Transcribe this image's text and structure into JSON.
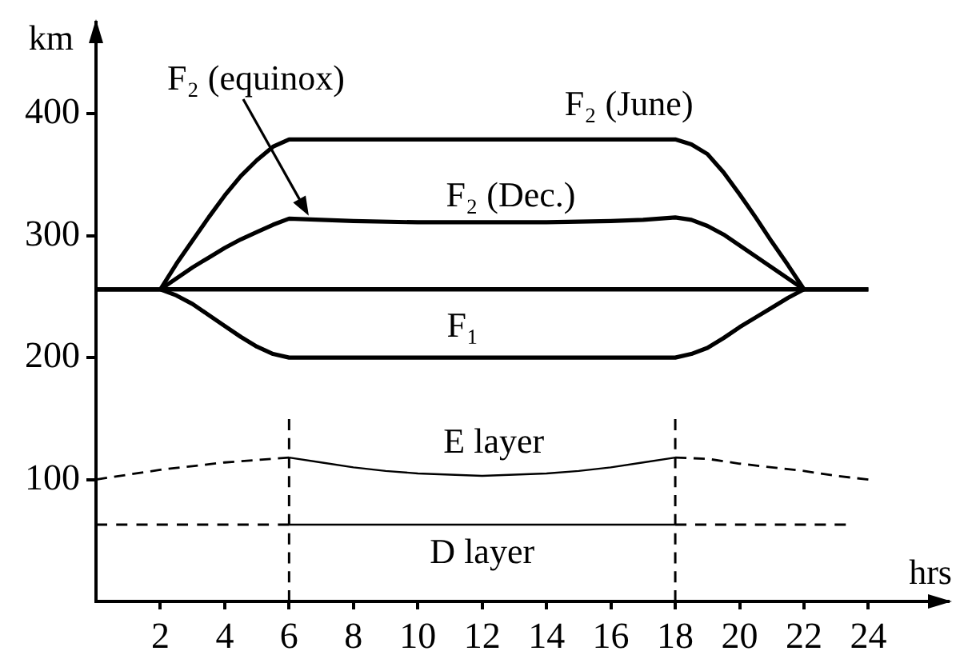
{
  "chart_data": {
    "type": "line",
    "xlabel": "hrs",
    "ylabel": "km",
    "xlim": [
      0,
      26.5
    ],
    "ylim": [
      0,
      475
    ],
    "xticks": [
      2,
      4,
      6,
      8,
      10,
      12,
      14,
      16,
      18,
      20,
      22,
      24
    ],
    "yticks": [
      100,
      200,
      300,
      400
    ],
    "grid": false,
    "legend": false,
    "marker": "none",
    "line_style": "solid",
    "annotations": [
      "F₂ (equinox)"
    ],
    "ref_lines": [
      {
        "axis": "x",
        "value": 6,
        "color": "#000000",
        "line_style": "dashed"
      },
      {
        "axis": "x",
        "value": 18,
        "color": "#000000",
        "line_style": "dashed"
      }
    ],
    "series": [
      {
        "color": "#000000",
        "x": [
          2,
          22
        ],
        "values": [
          256,
          256
        ]
      },
      {
        "name": "F₂ (June)",
        "color": "#000000",
        "x": [
          0,
          2,
          2.5,
          3,
          3.5,
          4,
          4.5,
          5,
          5.5,
          6,
          18,
          18.5,
          19,
          19.5,
          20,
          20.5,
          21,
          21.5,
          22,
          24
        ],
        "values": [
          256,
          256,
          277,
          296,
          315,
          333,
          349,
          362,
          373,
          379,
          379,
          375,
          367,
          352,
          334,
          315,
          295,
          276,
          256,
          256
        ]
      },
      {
        "name": "F₂ (Dec.)",
        "color": "#000000",
        "x": [
          2,
          2.5,
          3,
          3.5,
          4,
          4.5,
          5,
          5.5,
          6,
          7,
          8,
          10,
          12,
          14,
          16,
          17,
          18,
          18.5,
          19,
          19.5,
          20,
          20.5,
          21,
          21.5,
          22,
          24
        ],
        "values": [
          256,
          265,
          274,
          282,
          290,
          297,
          303,
          309,
          314,
          313,
          312,
          311,
          311,
          311,
          312,
          313,
          315,
          313,
          308,
          301,
          292,
          283,
          274,
          265,
          256,
          256
        ]
      },
      {
        "name": "F₁",
        "color": "#000000",
        "x": [
          0,
          2,
          2.5,
          3,
          3.5,
          4,
          4.5,
          5,
          5.5,
          6,
          18,
          18.5,
          19,
          19.5,
          20,
          20.5,
          21,
          21.5,
          22
        ],
        "values": [
          256,
          256,
          251,
          244,
          235,
          226,
          217,
          209,
          203,
          200,
          200,
          203,
          208,
          216,
          225,
          233,
          241,
          249,
          256
        ]
      },
      {
        "color": "#000000",
        "line_style": "dashed",
        "x": [
          0,
          1,
          2,
          3,
          4,
          5,
          6
        ],
        "values": [
          100,
          104,
          108,
          111,
          114,
          116,
          118
        ]
      },
      {
        "name": "E layer",
        "color": "#000000",
        "x": [
          6,
          7,
          8,
          9,
          10,
          11,
          12,
          13,
          14,
          15,
          16,
          17,
          18
        ],
        "values": [
          118,
          114,
          110,
          107,
          105,
          104,
          103,
          104,
          105,
          107,
          110,
          114,
          118
        ]
      },
      {
        "color": "#000000",
        "line_style": "dashed",
        "x": [
          18,
          19,
          20,
          21,
          22,
          23,
          24
        ],
        "values": [
          118,
          117,
          113,
          110,
          107,
          103,
          100
        ]
      },
      {
        "color": "#000000",
        "line_style": "dashed",
        "x": [
          0,
          6
        ],
        "values": [
          63,
          63
        ]
      },
      {
        "name": "D layer",
        "color": "#000000",
        "x": [
          6,
          18
        ],
        "values": [
          63,
          63
        ]
      },
      {
        "color": "#000000",
        "line_style": "dashed",
        "x": [
          18,
          23.3
        ],
        "values": [
          63,
          63
        ]
      }
    ]
  }
}
